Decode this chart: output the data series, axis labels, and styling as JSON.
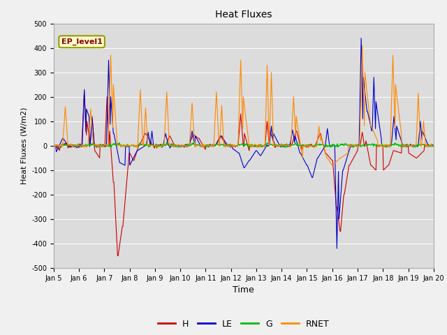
{
  "title": "Heat Fluxes",
  "xlabel": "Time",
  "ylabel": "Heat Fluxes (W/m2)",
  "annotation": "EP_level1",
  "ylim": [
    -500,
    500
  ],
  "yticks": [
    -500,
    -400,
    -300,
    -200,
    -100,
    0,
    100,
    200,
    300,
    400,
    500
  ],
  "xtick_labels": [
    "Jan 5",
    "Jan 6",
    "Jan 7",
    "Jan 8",
    "Jan 9",
    "Jan 10",
    "Jan 11",
    "Jan 12",
    "Jan 13",
    "Jan 14",
    "Jan 15",
    "Jan 16",
    "Jan 17",
    "Jan 18",
    "Jan 19",
    "Jan 20"
  ],
  "colors": {
    "H": "#cc0000",
    "LE": "#0000cc",
    "G": "#00bb00",
    "RNET": "#ff8800"
  },
  "bg_color": "#dcdcdc",
  "fig_color": "#f0f0f0",
  "legend_labels": [
    "H",
    "LE",
    "G",
    "RNET"
  ]
}
